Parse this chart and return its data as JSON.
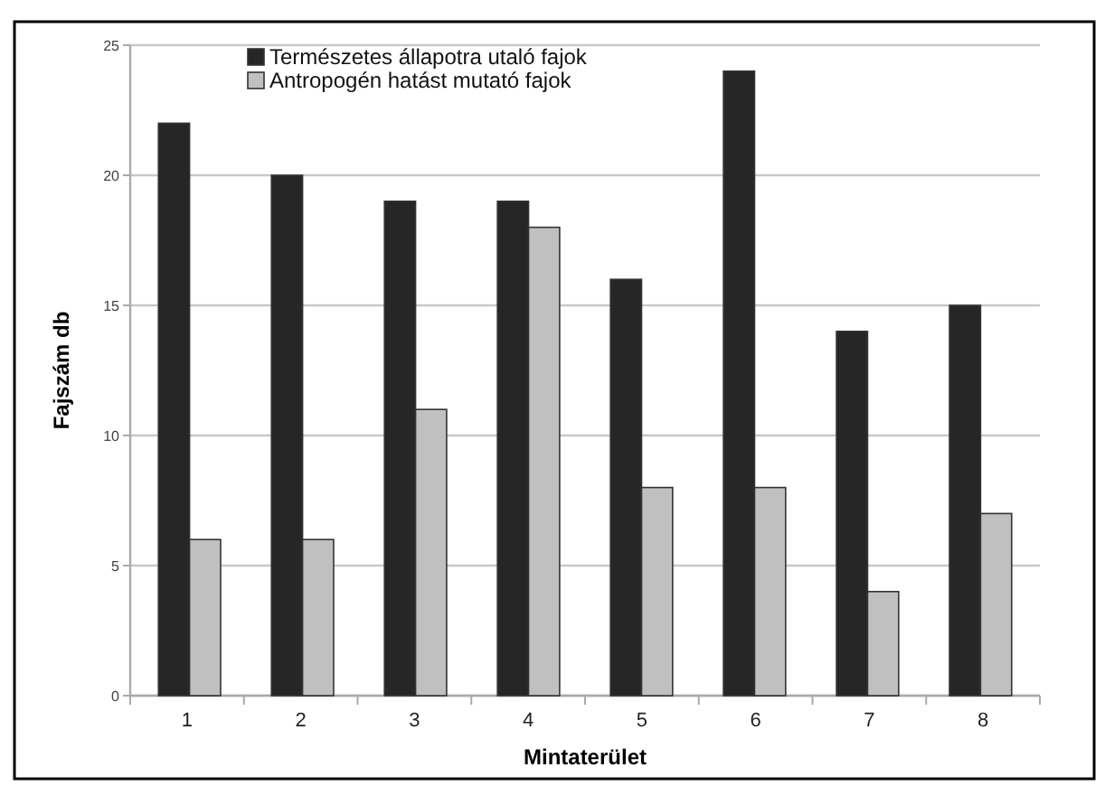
{
  "chart_data": {
    "type": "bar",
    "xlabel": "Mintaterület",
    "ylabel": "Fajszám db",
    "categories": [
      "1",
      "2",
      "3",
      "4",
      "5",
      "6",
      "7",
      "8"
    ],
    "series": [
      {
        "name": "Természetes állapotra utaló fajok",
        "color": "#262626",
        "values": [
          22,
          20,
          19,
          19,
          16,
          24,
          14,
          15
        ]
      },
      {
        "name": "Antropogén hatást mutató fajok",
        "color": "#c0c0c0",
        "values": [
          6,
          6,
          11,
          18,
          8,
          8,
          4,
          7
        ]
      }
    ],
    "ylim": [
      0,
      25
    ],
    "yticks": [
      0,
      5,
      10,
      15,
      20,
      25
    ],
    "grid": "y",
    "legend": "top left"
  }
}
